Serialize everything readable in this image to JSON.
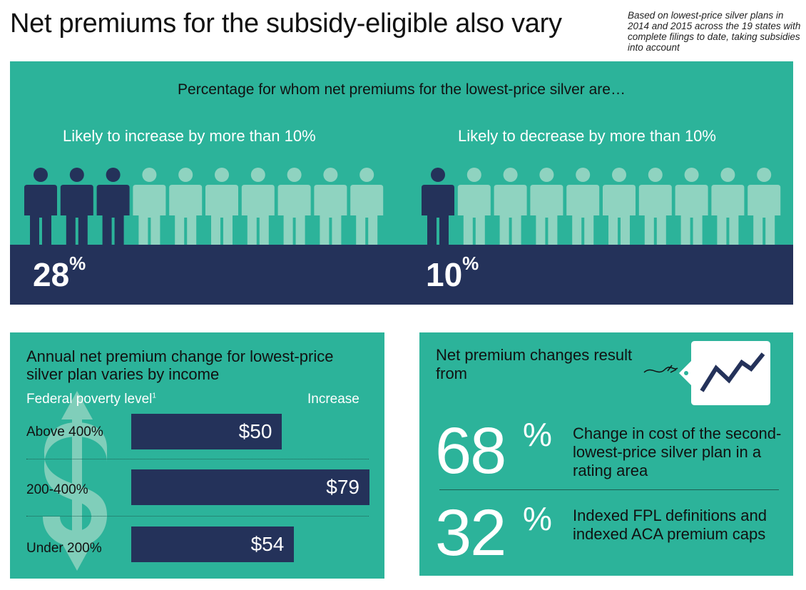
{
  "header": {
    "title": "Net premiums for the subsidy-eligible also vary",
    "note": "Based on lowest-price silver plans in 2014 and 2015 across the 19 states with complete filings to date, taking subsidies into account"
  },
  "colors": {
    "panel": "#2cb39a",
    "navy": "#24325a",
    "figure_light": "#8fd3c0",
    "figure_dark": "#24325a"
  },
  "top": {
    "heading": "Percentage for whom net premiums for the lowest-price silver are…",
    "increase": {
      "label": "Likely to increase by more than 10%",
      "value": "28",
      "unit": "%"
    },
    "decrease": {
      "label": "Likely to decrease by more than 10%",
      "value": "10",
      "unit": "%"
    }
  },
  "income": {
    "heading": "Annual net premium change for lowest-price silver plan varies by income",
    "col_left": "Federal poverty level",
    "col_left_note": "1",
    "col_right": "Increase",
    "icon": "dollar-arrow-icon"
  },
  "sources": {
    "heading": "Net premium changes result from",
    "icon": "price-tag-trend-icon",
    "items": [
      {
        "value": "68",
        "unit": "%",
        "desc": "Change in cost of the second-lowest-price silver plan in a rating area"
      },
      {
        "value": "32",
        "unit": "%",
        "desc": "Indexed FPL definitions and indexed ACA premium caps"
      }
    ]
  },
  "chart_data": [
    {
      "type": "pictogram",
      "categories": [
        "Likely to increase by more than 10%",
        "Likely to decrease by more than 10%"
      ],
      "values": [
        28,
        10
      ],
      "unit": "%",
      "figures_per_group": 10,
      "highlighted_figures": [
        3,
        1
      ]
    },
    {
      "type": "bar",
      "orientation": "horizontal",
      "categories": [
        "Above 400%",
        "200-400%",
        "Under 200%"
      ],
      "values": [
        50,
        79,
        54
      ],
      "labels": [
        "$50",
        "$79",
        "$54"
      ],
      "xlabel": "Increase",
      "ylabel": "Federal poverty level",
      "xlim": [
        0,
        79
      ]
    },
    {
      "type": "table",
      "rows": [
        {
          "share": 68,
          "cause": "Change in cost of the second-lowest-price silver plan in a rating area"
        },
        {
          "share": 32,
          "cause": "Indexed FPL definitions and indexed ACA premium caps"
        }
      ]
    }
  ]
}
